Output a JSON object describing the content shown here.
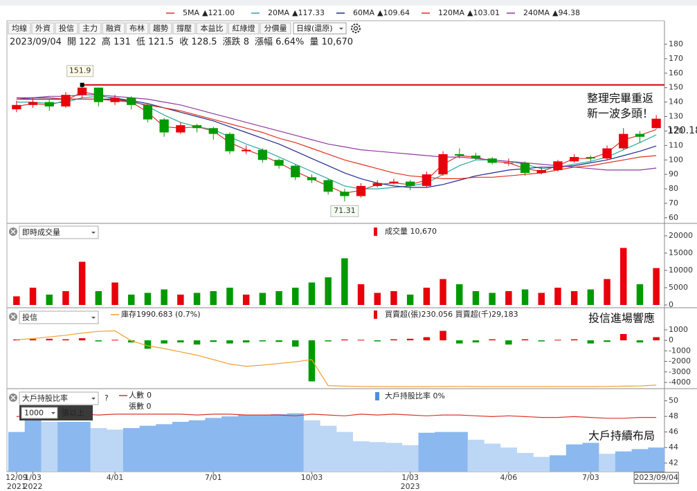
{
  "toolbar": {
    "buttons": [
      {
        "label": "均線",
        "enabled": true
      },
      {
        "label": "外資",
        "enabled": false
      },
      {
        "label": "投信",
        "enabled": false
      },
      {
        "label": "主力",
        "enabled": false
      },
      {
        "label": "融資",
        "enabled": false
      },
      {
        "label": "布林",
        "enabled": true
      },
      {
        "label": "趨勢",
        "enabled": true
      },
      {
        "label": "撐壓",
        "enabled": true
      },
      {
        "label": "本益比",
        "enabled": true
      },
      {
        "label": "紅綠燈",
        "enabled": true
      },
      {
        "label": "分價量",
        "enabled": false
      }
    ],
    "period": "日線(還原)"
  },
  "quote": [
    {
      "text": "2023/09/04",
      "color": "#222"
    },
    {
      "text": "開 122",
      "color": "#222"
    },
    {
      "text": "高 131",
      "color": "#222"
    },
    {
      "text": "低 121.5",
      "color": "#222"
    },
    {
      "text": "收 128.5",
      "color": "#222"
    },
    {
      "text": "漲跌 8",
      "color": "#e8000b"
    },
    {
      "text": "漲幅 6.64%",
      "color": "#e8000b"
    },
    {
      "text": "量 10,670",
      "color": "#222"
    }
  ],
  "dates": [
    "12/09\n2021",
    "1/03\n2022",
    null,
    null,
    null,
    null,
    "4/01",
    null,
    null,
    null,
    null,
    null,
    "7/01",
    null,
    null,
    null,
    null,
    null,
    "10/03",
    null,
    null,
    null,
    null,
    null,
    "1/03\n2023",
    null,
    null,
    null,
    null,
    null,
    "4/06",
    null,
    null,
    null,
    null,
    "7/03",
    null,
    null,
    null,
    "2023/09/04"
  ],
  "chart_data": [
    {
      "type": "candlestick",
      "open": [
        135,
        138,
        140,
        137,
        145,
        150,
        140,
        143,
        138,
        128,
        119,
        124,
        122,
        118,
        106,
        107,
        100,
        96,
        88,
        86,
        78,
        75,
        82,
        84,
        85,
        82,
        90,
        104,
        103,
        101,
        98,
        98,
        91,
        93,
        99,
        102,
        101,
        108,
        118,
        122
      ],
      "high": [
        141,
        143,
        142,
        147,
        151.9,
        150,
        145,
        144,
        139,
        129,
        126,
        125,
        123,
        119,
        110,
        108,
        101,
        97,
        90,
        87,
        80,
        84,
        86,
        87,
        86,
        92,
        106,
        108,
        105,
        102,
        101,
        99,
        95,
        100,
        104,
        103,
        110,
        122,
        120,
        131
      ],
      "low": [
        133,
        136,
        134,
        136,
        143,
        137,
        138,
        135,
        126,
        116,
        118,
        119,
        114,
        104,
        104,
        98,
        94,
        86,
        84,
        76,
        71.31,
        74,
        81,
        83,
        79,
        81,
        89,
        101,
        100,
        97,
        96,
        89,
        90,
        92,
        98,
        99,
        100,
        107,
        112,
        121.5
      ],
      "close": [
        138,
        140,
        137,
        145,
        150,
        140,
        143,
        138,
        128,
        119,
        124,
        122,
        118,
        106,
        107,
        100,
        96,
        88,
        86,
        78,
        75,
        82,
        84,
        85,
        82,
        90,
        104,
        103,
        101,
        98,
        98,
        91,
        93,
        99,
        102,
        101,
        108,
        118,
        116,
        128.5
      ],
      "up_color": "#e8000b",
      "down_color": "#009a00",
      "series": [
        {
          "name": "5MA",
          "legend_label": "▲121.00",
          "color": "#d9342b",
          "values": [
            137,
            139,
            138,
            141,
            147,
            145,
            142,
            140,
            133,
            123,
            122,
            123,
            120,
            112,
            107,
            103,
            98,
            92,
            87,
            82,
            77,
            79,
            83,
            84,
            83,
            86,
            97,
            103,
            102,
            99,
            98,
            94,
            92,
            96,
            101,
            101,
            105,
            114,
            117,
            121.0
          ]
        },
        {
          "name": "20MA",
          "legend_label": "▲117.33",
          "color": "#2aa7a0",
          "values": [
            140,
            140,
            139,
            140,
            143,
            144,
            143,
            141,
            137,
            131,
            126,
            123,
            121,
            116,
            111,
            107,
            102,
            97,
            92,
            87,
            82,
            80,
            80,
            81,
            82,
            84,
            90,
            96,
            100,
            100,
            99,
            97,
            94,
            95,
            97,
            99,
            102,
            107,
            112,
            117.33
          ]
        },
        {
          "name": "60MA",
          "legend_label": "▲109.64",
          "color": "#1f2a8c",
          "values": [
            142,
            142,
            142,
            142,
            142,
            142,
            142,
            141,
            139,
            136,
            133,
            130,
            127,
            123,
            119,
            115,
            111,
            106,
            101,
            96,
            91,
            87,
            84,
            82,
            81,
            81,
            83,
            86,
            89,
            91,
            93,
            94,
            95,
            95,
            96,
            98,
            100,
            103,
            106,
            109.64
          ]
        },
        {
          "name": "120MA",
          "legend_label": "▲103.01",
          "color": "#e0301e",
          "values": [
            143,
            143,
            143,
            142,
            142,
            142,
            141,
            140,
            138,
            136,
            134,
            131,
            128,
            125,
            122,
            119,
            115,
            112,
            108,
            104,
            100,
            97,
            94,
            91,
            89,
            88,
            87,
            87,
            88,
            88,
            89,
            90,
            91,
            93,
            95,
            96,
            98,
            100,
            102,
            103.01
          ]
        },
        {
          "name": "240MA",
          "legend_label": "▲94.38",
          "color": "#8e3a9e",
          "values": [
            142,
            143,
            144,
            144,
            145,
            145,
            144,
            143,
            142,
            140,
            138,
            135,
            132,
            129,
            126,
            123,
            120,
            117,
            114,
            111,
            109,
            107,
            106,
            105,
            104,
            103,
            102,
            102,
            101,
            100,
            99,
            98,
            97,
            96,
            95,
            94,
            93,
            93,
            93,
            94.38
          ]
        }
      ],
      "ylim": [
        56.6,
        195.3
      ],
      "yticks": [
        60,
        70,
        80,
        90,
        100,
        110,
        120,
        130,
        140,
        150,
        160,
        170,
        180
      ],
      "marked_high": 151.9,
      "marked_low": 71.31,
      "last_label": 120.18,
      "ref_line_color": "#d40000",
      "annotation": [
        "整理完畢重返",
        "新一波多頭！"
      ]
    },
    {
      "type": "bar",
      "title": "即時成交量",
      "legend": "成交量 10,670",
      "values": [
        2500,
        5000,
        3000,
        4000,
        12500,
        4000,
        6500,
        3000,
        3500,
        4500,
        3000,
        3500,
        4000,
        5000,
        3000,
        3500,
        4000,
        5000,
        6500,
        8000,
        13500,
        6000,
        3500,
        4000,
        3000,
        5000,
        7500,
        6000,
        4000,
        3500,
        4000,
        4500,
        3500,
        5000,
        4000,
        4500,
        7500,
        16500,
        6000,
        10670
      ],
      "ylim": [
        -400,
        23200
      ],
      "yticks": [
        0,
        5000,
        10000,
        15000,
        20000
      ]
    },
    {
      "type": "bar",
      "title": "投信",
      "legend": "買賣超(張)230.056 買賣超(千)29,183",
      "annotation": "投信進場響應",
      "values": [
        80,
        120,
        150,
        100,
        200,
        -100,
        50,
        -200,
        -800,
        -300,
        -200,
        -400,
        -150,
        -300,
        -200,
        -100,
        -150,
        -600,
        -3900,
        -100,
        80,
        50,
        -100,
        100,
        150,
        300,
        900,
        -300,
        -200,
        100,
        -400,
        100,
        -100,
        50,
        100,
        -300,
        -150,
        600,
        -200,
        300
      ],
      "pos_color": "#e8000b",
      "neg_color": "#009a00",
      "ylim": [
        -4460,
        2900
      ],
      "yticks": [
        1000,
        0,
        -1000,
        -2000,
        -3000,
        -4000
      ],
      "series": [
        {
          "name": "庫存",
          "legend_label": "1990.683 (0.7%)",
          "color": "#f0a030",
          "axis": "y2",
          "values": [
            6100,
            6200,
            6350,
            6500,
            6700,
            6850,
            6900,
            6000,
            5550,
            5300,
            5000,
            4700,
            4300,
            3900,
            3700,
            3800,
            3950,
            4100,
            4300,
            1950,
            1900,
            1880,
            1870,
            1860,
            1860,
            1860,
            1870,
            1880,
            1870,
            1860,
            1860,
            1860,
            1860,
            1870,
            1870,
            1870,
            1880,
            1900,
            1920,
            1990.683
          ]
        }
      ],
      "y2lim": [
        1800,
        8800
      ]
    },
    {
      "type": "bar",
      "title": "大戶持股比率",
      "threshold": "1000",
      "unit": "張以上",
      "help": "?",
      "legend": "大戶持股比率 0%",
      "extra_legend": "張數 0",
      "annotation": "大戶持續布局",
      "values": [
        46,
        47.5,
        47.3,
        47.3,
        47.3,
        46.5,
        46.3,
        46.5,
        46.8,
        47,
        47.3,
        47.5,
        47.8,
        48,
        48.2,
        48.2,
        48.3,
        48.4,
        47.5,
        46.8,
        46,
        44.8,
        44.7,
        44.6,
        44.3,
        45.9,
        46,
        46,
        45,
        44.5,
        44,
        43.3,
        42.8,
        43,
        44.4,
        44.6,
        43.2,
        43.5,
        43.8,
        44
      ],
      "up_color": "#8bb8ee",
      "down_color": "#bcd6f5",
      "ylim": [
        40.9,
        51.3
      ],
      "yticks": [
        42,
        44,
        46,
        48,
        50
      ],
      "series": [
        {
          "name": "人數",
          "legend_label": "0",
          "color": "#d9342b",
          "axis": "y2",
          "values": [
            68,
            70,
            71,
            70,
            71,
            70,
            71,
            71,
            71,
            71,
            71,
            70,
            71,
            71,
            70,
            70,
            70,
            69,
            71,
            70,
            69,
            71,
            70,
            71,
            70,
            69,
            70,
            70,
            69,
            68,
            69,
            68,
            67,
            67,
            68,
            67,
            66,
            66,
            67,
            67
          ]
        }
      ],
      "y2lim": [
        0,
        100
      ]
    }
  ]
}
